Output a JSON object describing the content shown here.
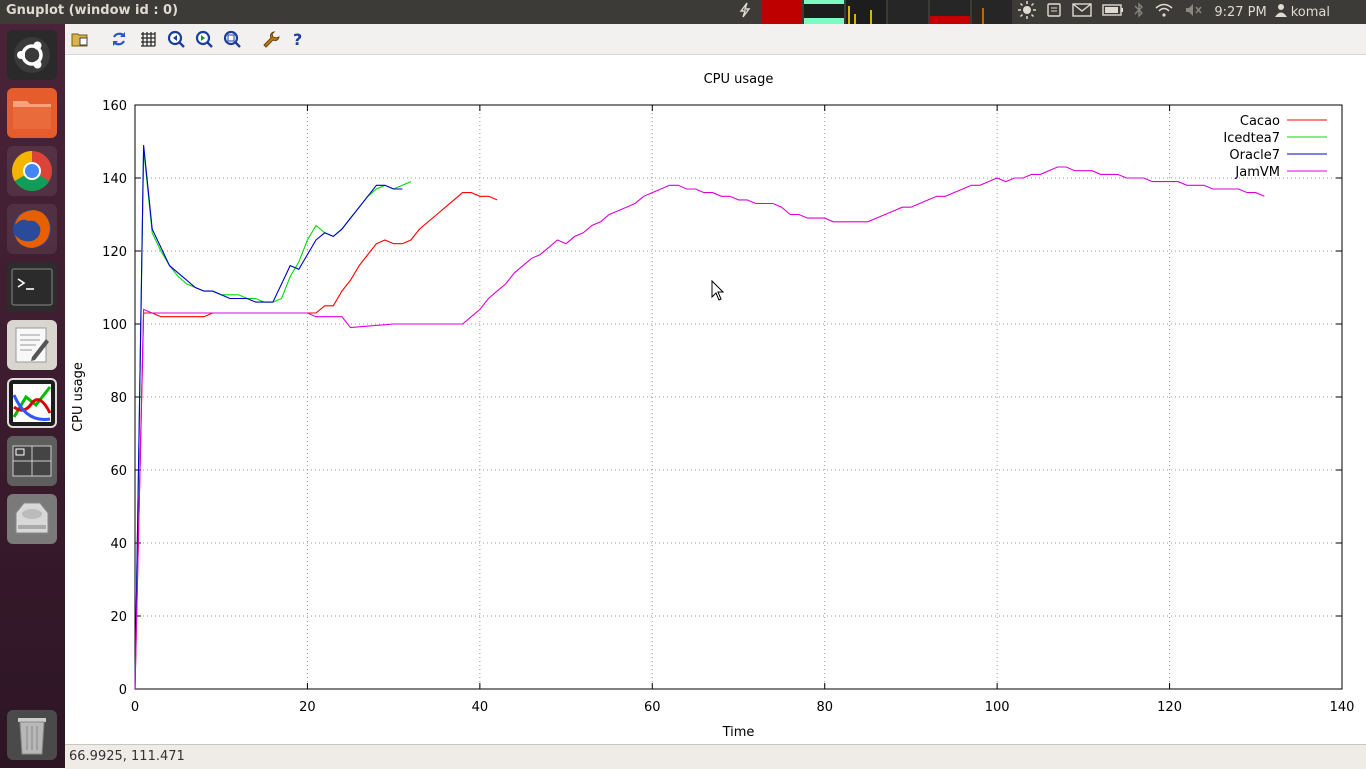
{
  "window": {
    "title": "Gnuplot (window id : 0)"
  },
  "panel": {
    "clock": "9:27 PM",
    "user": "komal"
  },
  "status": {
    "coords": "66.9925, 111.471"
  },
  "chart_data": {
    "type": "line",
    "title": "CPU usage",
    "xlabel": "Time",
    "ylabel": "CPU usage",
    "xlim": [
      0,
      140
    ],
    "ylim": [
      0,
      160
    ],
    "xticks": [
      0,
      20,
      40,
      60,
      80,
      100,
      120,
      140
    ],
    "yticks": [
      0,
      20,
      40,
      60,
      80,
      100,
      120,
      140,
      160
    ],
    "grid": true,
    "legend": "top-right",
    "series": [
      {
        "name": "Cacao",
        "color": "#ff0000",
        "x": [
          0,
          1,
          2,
          3,
          4,
          5,
          6,
          7,
          8,
          9,
          10,
          11,
          12,
          13,
          14,
          15,
          16,
          17,
          18,
          19,
          20,
          21,
          22,
          23,
          24,
          25,
          26,
          27,
          28,
          29,
          30,
          31,
          32,
          33,
          34,
          35,
          36,
          37,
          38,
          39,
          40,
          41,
          42
        ],
        "y": [
          0,
          103,
          103,
          102,
          102,
          102,
          102,
          102,
          102,
          103,
          103,
          103,
          103,
          103,
          103,
          103,
          103,
          103,
          103,
          103,
          103,
          103,
          105,
          105,
          109,
          112,
          116,
          119,
          122,
          123,
          122,
          122,
          123,
          126,
          128,
          130,
          132,
          134,
          136,
          136,
          135,
          135,
          134
        ]
      },
      {
        "name": "Icedtea7",
        "color": "#00dd00",
        "x": [
          0,
          1,
          2,
          3,
          4,
          5,
          6,
          7,
          8,
          9,
          10,
          11,
          12,
          13,
          14,
          15,
          16,
          17,
          18,
          19,
          20,
          21,
          22,
          23,
          24,
          25,
          26,
          27,
          28,
          29,
          30,
          31,
          32
        ],
        "y": [
          0,
          148,
          125,
          120,
          116,
          113,
          111,
          110,
          109,
          109,
          108,
          108,
          108,
          107,
          107,
          106,
          106,
          107,
          113,
          117,
          123,
          127,
          125,
          124,
          126,
          129,
          132,
          135,
          137,
          138,
          137,
          138,
          139
        ]
      },
      {
        "name": "Oracle7",
        "color": "#0000cc",
        "x": [
          0,
          1,
          2,
          3,
          4,
          5,
          6,
          7,
          8,
          9,
          10,
          11,
          12,
          13,
          14,
          15,
          16,
          17,
          18,
          19,
          20,
          21,
          22,
          23,
          24,
          25,
          26,
          27,
          28,
          29,
          30,
          31
        ],
        "y": [
          0,
          149,
          126,
          121,
          116,
          114,
          112,
          110,
          109,
          109,
          108,
          107,
          107,
          107,
          106,
          106,
          106,
          111,
          116,
          115,
          119,
          123,
          125,
          124,
          126,
          129,
          132,
          135,
          138,
          138,
          137,
          137
        ]
      },
      {
        "name": "JamVM",
        "color": "#dd00dd",
        "x": [
          0,
          1,
          2,
          5,
          10,
          15,
          20,
          21,
          24,
          25,
          30,
          35,
          38,
          39,
          40,
          41,
          42,
          43,
          44,
          45,
          46,
          47,
          48,
          49,
          50,
          51,
          52,
          53,
          54,
          55,
          56,
          57,
          58,
          59,
          60,
          61,
          62,
          63,
          64,
          65,
          66,
          67,
          68,
          69,
          70,
          71,
          72,
          73,
          74,
          75,
          76,
          77,
          78,
          79,
          80,
          81,
          82,
          83,
          84,
          85,
          86,
          87,
          88,
          89,
          90,
          91,
          92,
          93,
          94,
          95,
          96,
          97,
          98,
          99,
          100,
          101,
          102,
          103,
          104,
          105,
          106,
          107,
          108,
          109,
          110,
          111,
          112,
          113,
          114,
          115,
          116,
          117,
          118,
          119,
          120,
          121,
          122,
          123,
          124,
          125,
          126,
          127,
          128,
          129,
          130,
          131
        ],
        "y": [
          0,
          104,
          103,
          103,
          103,
          103,
          103,
          102,
          102,
          99,
          100,
          100,
          100,
          102,
          104,
          107,
          109,
          111,
          114,
          116,
          118,
          119,
          121,
          123,
          122,
          124,
          125,
          127,
          128,
          130,
          131,
          132,
          133,
          135,
          136,
          137,
          138,
          138,
          137,
          137,
          136,
          136,
          135,
          135,
          134,
          134,
          133,
          133,
          133,
          132,
          130,
          130,
          129,
          129,
          129,
          128,
          128,
          128,
          128,
          128,
          129,
          130,
          131,
          132,
          132,
          133,
          134,
          135,
          135,
          136,
          137,
          138,
          138,
          139,
          140,
          139,
          140,
          140,
          141,
          141,
          142,
          143,
          143,
          142,
          142,
          142,
          141,
          141,
          141,
          140,
          140,
          140,
          139,
          139,
          139,
          139,
          138,
          138,
          138,
          137,
          137,
          137,
          137,
          136,
          136,
          135
        ]
      }
    ]
  }
}
